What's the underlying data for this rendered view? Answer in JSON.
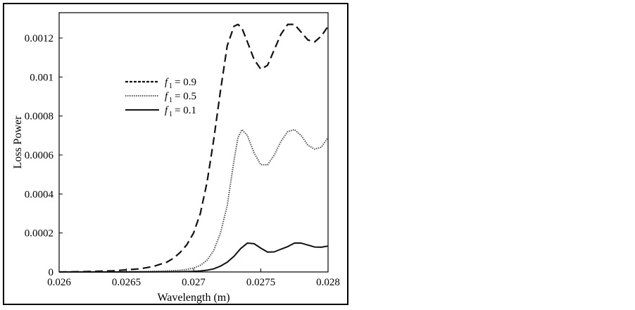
{
  "chart_data": {
    "type": "line",
    "title": "",
    "xlabel": "Wavelength (m)",
    "ylabel": "Loss Power",
    "xlim": [
      0.026,
      0.028
    ],
    "ylim": [
      0,
      0.00133
    ],
    "x_ticks": [
      0.026,
      0.0265,
      0.027,
      0.0275,
      0.028
    ],
    "x_tick_labels": [
      "0.026",
      "0.0265",
      "0.027",
      "0.0275",
      "0.028"
    ],
    "y_ticks": [
      0,
      0.0002,
      0.0004,
      0.0006,
      0.0008,
      0.001,
      0.0012
    ],
    "y_tick_labels": [
      "0",
      "0.0002",
      "0.0004",
      "0.0006",
      "0.0008",
      "0.001",
      "0.0012"
    ],
    "grid": false,
    "legend": {
      "placement": "upper-left",
      "symbol": "f",
      "subscript": "1"
    },
    "series": [
      {
        "name": "= 0.9",
        "style": "dashed",
        "x": [
          0.026,
          0.0262,
          0.0264,
          0.0266,
          0.0267,
          0.0268,
          0.02685,
          0.0269,
          0.02695,
          0.027,
          0.02705,
          0.0271,
          0.02715,
          0.0272,
          0.02725,
          0.0273,
          0.02733,
          0.02736,
          0.0274,
          0.02745,
          0.0275,
          0.02755,
          0.0276,
          0.02765,
          0.0277,
          0.02775,
          0.0278,
          0.02785,
          0.0279,
          0.02795,
          0.028
        ],
        "y": [
          0.0,
          2e-06,
          6e-06,
          1.6e-05,
          2.8e-05,
          5e-05,
          7e-05,
          0.0001,
          0.00014,
          0.0002,
          0.0003,
          0.00046,
          0.00068,
          0.00093,
          0.00116,
          0.00126,
          0.00127,
          0.00125,
          0.00118,
          0.00109,
          0.00104,
          0.00106,
          0.00114,
          0.00122,
          0.00127,
          0.00127,
          0.00123,
          0.00119,
          0.00118,
          0.00121,
          0.00126
        ]
      },
      {
        "name": "= 0.5",
        "style": "dotted",
        "x": [
          0.026,
          0.0263,
          0.0265,
          0.0267,
          0.0268,
          0.0269,
          0.02695,
          0.027,
          0.02705,
          0.0271,
          0.02715,
          0.0272,
          0.02725,
          0.0273,
          0.02733,
          0.02736,
          0.0274,
          0.02745,
          0.0275,
          0.02755,
          0.0276,
          0.02765,
          0.0277,
          0.02775,
          0.0278,
          0.02785,
          0.0279,
          0.02795,
          0.028
        ],
        "y": [
          0.0,
          5e-07,
          1e-06,
          3e-06,
          5e-06,
          9e-06,
          1.3e-05,
          2e-05,
          3.4e-05,
          6e-05,
          0.00011,
          0.0002,
          0.00034,
          0.00057,
          0.00069,
          0.00073,
          0.0007,
          0.00061,
          0.00055,
          0.00055,
          0.0006,
          0.00067,
          0.00072,
          0.00073,
          0.0007,
          0.00065,
          0.00063,
          0.00064,
          0.00069
        ]
      },
      {
        "name": "= 0.1",
        "style": "solid",
        "x": [
          0.026,
          0.0265,
          0.0268,
          0.0269,
          0.027,
          0.02705,
          0.0271,
          0.02715,
          0.0272,
          0.02725,
          0.0273,
          0.02735,
          0.0274,
          0.02745,
          0.0275,
          0.02755,
          0.0276,
          0.02765,
          0.0277,
          0.02775,
          0.0278,
          0.02785,
          0.0279,
          0.02795,
          0.028
        ],
        "y": [
          0.0,
          2e-07,
          8e-07,
          1.5e-06,
          3e-06,
          5e-06,
          9e-06,
          1.6e-05,
          3e-05,
          5e-05,
          8e-05,
          0.00012,
          0.000148,
          0.000145,
          0.000122,
          0.000102,
          0.000103,
          0.000117,
          0.00013,
          0.000148,
          0.000148,
          0.000138,
          0.000128,
          0.000127,
          0.000133
        ]
      }
    ]
  }
}
